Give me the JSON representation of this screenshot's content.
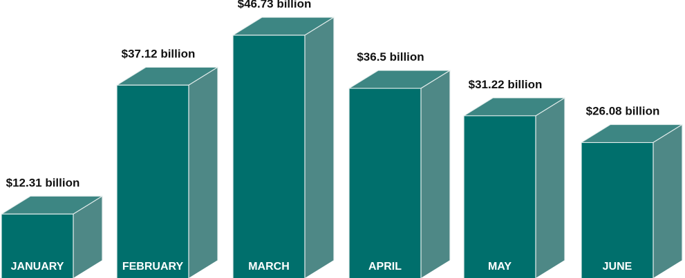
{
  "chart_data": {
    "type": "bar",
    "style": "3d-column",
    "title": "",
    "xlabel": "",
    "ylabel": "",
    "ylim": [
      0,
      50
    ],
    "grid": false,
    "legend": "none",
    "categories": [
      "JANUARY",
      "FEBRUARY",
      "MARCH",
      "APRIL",
      "MAY",
      "JUNE"
    ],
    "values": [
      12.31,
      37.12,
      46.73,
      36.5,
      31.22,
      26.08
    ],
    "data_labels": [
      "$12.31 billion",
      "$37.12 billion",
      "$46.73 billion",
      "$36.5 billion",
      "$31.22 billion",
      "$26.08 billion"
    ],
    "colors": {
      "front": "#006f6c",
      "top": "#3d8683",
      "side": "#4e8886",
      "category_text": "#ffffff",
      "label_text": "#111111"
    }
  }
}
